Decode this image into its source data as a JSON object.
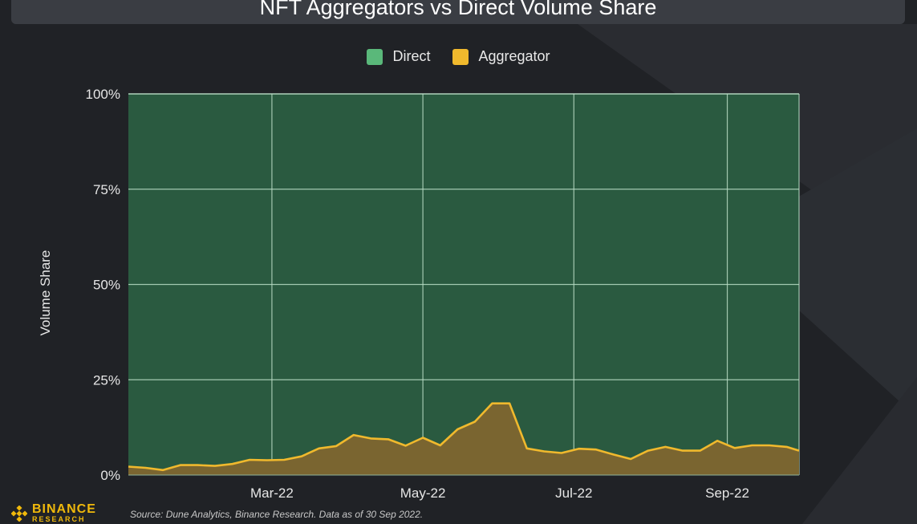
{
  "brand": {
    "name": "BINANCE",
    "sub": "RESEARCH"
  },
  "source": "Source: Dune Analytics, Binance Research. Data as of 30 Sep 2022.",
  "colors": {
    "direct": "#5ab87a",
    "direct_fill": "#2a5a40",
    "aggregator": "#f0b92d",
    "aggregator_fill": "#7a6530",
    "background": "#202226",
    "grid": "#b8dcc4"
  },
  "chart_data": {
    "type": "area",
    "title": "NFT Aggregators vs Direct Volume Share",
    "ylabel": "Volume Share",
    "xlabel": "",
    "ylim": [
      0,
      100
    ],
    "yticks": [
      "0%",
      "25%",
      "50%",
      "75%",
      "100%"
    ],
    "legend_placement": "top-center",
    "stacked": true,
    "x_ticks": [
      "Mar-22",
      "May-22",
      "Jul-22",
      "Sep-22"
    ],
    "x": [
      "2022-01-02",
      "2022-01-09",
      "2022-01-16",
      "2022-01-23",
      "2022-01-30",
      "2022-02-06",
      "2022-02-13",
      "2022-02-20",
      "2022-02-27",
      "2022-03-06",
      "2022-03-13",
      "2022-03-20",
      "2022-03-27",
      "2022-04-03",
      "2022-04-10",
      "2022-04-17",
      "2022-04-24",
      "2022-05-01",
      "2022-05-08",
      "2022-05-15",
      "2022-05-22",
      "2022-05-29",
      "2022-06-05",
      "2022-06-12",
      "2022-06-19",
      "2022-06-26",
      "2022-07-03",
      "2022-07-10",
      "2022-07-17",
      "2022-07-24",
      "2022-07-31",
      "2022-08-07",
      "2022-08-14",
      "2022-08-21",
      "2022-08-28",
      "2022-09-04",
      "2022-09-11",
      "2022-09-18",
      "2022-09-25",
      "2022-09-30"
    ],
    "series": [
      {
        "name": "Aggregator",
        "values": [
          2.2,
          1.9,
          1.3,
          2.6,
          2.6,
          2.4,
          2.9,
          4,
          3.9,
          4,
          4.9,
          7,
          7.6,
          10.5,
          9.6,
          9.4,
          7.7,
          9.8,
          7.8,
          12,
          14,
          18.8,
          18.8,
          7,
          6.2,
          5.8,
          6.9,
          6.7,
          5.4,
          4.2,
          6.4,
          7.4,
          6.4,
          6.4,
          9,
          7.1,
          7.8,
          7.8,
          7.4,
          6.4
        ]
      },
      {
        "name": "Direct",
        "values": [
          97.8,
          98.1,
          98.7,
          97.4,
          97.4,
          97.6,
          97.1,
          96,
          96.1,
          96,
          95.1,
          93,
          92.4,
          89.5,
          90.4,
          90.6,
          92.3,
          90.2,
          92.2,
          88,
          86,
          81.2,
          81.2,
          93,
          93.8,
          94.2,
          93.1,
          93.3,
          94.6,
          95.8,
          93.6,
          92.6,
          93.6,
          93.6,
          91,
          92.9,
          92.2,
          92.2,
          92.6,
          93.6
        ]
      }
    ]
  }
}
